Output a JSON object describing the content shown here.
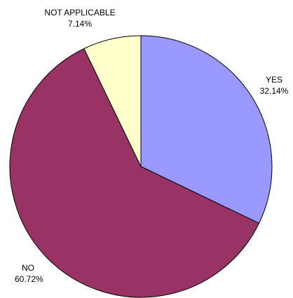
{
  "chart_data": {
    "type": "pie",
    "start_angle_deg": 0,
    "direction": "clockwise",
    "slices": [
      {
        "label": "YES",
        "value_text": "32.14%",
        "value": 32.14,
        "color": "#9999ff"
      },
      {
        "label": "NO",
        "value_text": "60.72%",
        "value": 60.72,
        "color": "#993366"
      },
      {
        "label": "NOT APPLICABLE",
        "value_text": "7.14%",
        "value": 7.14,
        "color": "#ffffcc"
      }
    ],
    "outline_color": "#000000"
  }
}
